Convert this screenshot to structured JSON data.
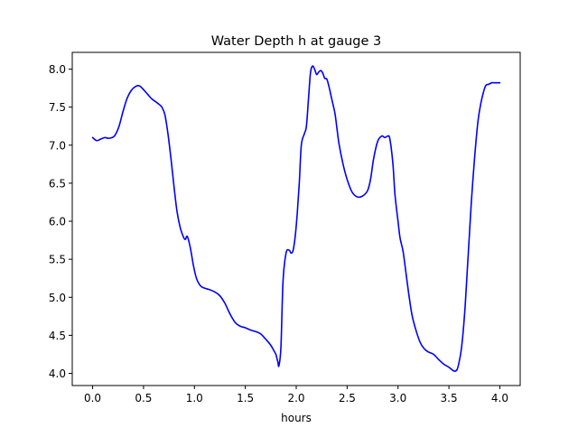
{
  "chart_data": {
    "type": "line",
    "title": "Water Depth h at gauge 3",
    "xlabel": "hours",
    "ylabel": "",
    "xlim": [
      -0.2,
      4.2
    ],
    "ylim": [
      3.84,
      8.22
    ],
    "xticks": [
      0.0,
      0.5,
      1.0,
      1.5,
      2.0,
      2.5,
      3.0,
      3.5,
      4.0
    ],
    "xtick_labels": [
      "0.0",
      "0.5",
      "1.0",
      "1.5",
      "2.0",
      "2.5",
      "3.0",
      "3.5",
      "4.0"
    ],
    "yticks": [
      4.0,
      4.5,
      5.0,
      5.5,
      6.0,
      6.5,
      7.0,
      7.5,
      8.0
    ],
    "ytick_labels": [
      "4.0",
      "4.5",
      "5.0",
      "5.5",
      "6.0",
      "6.5",
      "7.0",
      "7.5",
      "8.0"
    ],
    "grid": false,
    "legend": "none",
    "series": [
      {
        "color": "#0000ff",
        "x": [
          0.0,
          0.04,
          0.08,
          0.12,
          0.15,
          0.19,
          0.22,
          0.26,
          0.3,
          0.34,
          0.38,
          0.42,
          0.46,
          0.5,
          0.54,
          0.58,
          0.62,
          0.65,
          0.68,
          0.71,
          0.74,
          0.77,
          0.8,
          0.83,
          0.86,
          0.89,
          0.91,
          0.93,
          0.96,
          0.99,
          1.02,
          1.06,
          1.1,
          1.15,
          1.2,
          1.25,
          1.3,
          1.35,
          1.4,
          1.45,
          1.5,
          1.55,
          1.6,
          1.65,
          1.7,
          1.75,
          1.78,
          1.8,
          1.81,
          1.82,
          1.83,
          1.85,
          1.87,
          1.9,
          1.93,
          1.95,
          1.97,
          1.99,
          2.01,
          2.03,
          2.05,
          2.08,
          2.1,
          2.12,
          2.14,
          2.16,
          2.18,
          2.2,
          2.22,
          2.24,
          2.26,
          2.28,
          2.3,
          2.32,
          2.35,
          2.38,
          2.4,
          2.42,
          2.46,
          2.5,
          2.55,
          2.6,
          2.65,
          2.7,
          2.73,
          2.76,
          2.8,
          2.84,
          2.87,
          2.9,
          2.92,
          2.95,
          2.97,
          3.0,
          3.02,
          3.05,
          3.08,
          3.11,
          3.14,
          3.18,
          3.22,
          3.26,
          3.3,
          3.35,
          3.4,
          3.45,
          3.5,
          3.55,
          3.58,
          3.6,
          3.62,
          3.64,
          3.66,
          3.68,
          3.7,
          3.72,
          3.75,
          3.78,
          3.8,
          3.83,
          3.86,
          3.89,
          3.92,
          3.94,
          3.96,
          3.98,
          4.0
        ],
        "y": [
          7.1,
          7.06,
          7.08,
          7.1,
          7.09,
          7.1,
          7.13,
          7.25,
          7.45,
          7.62,
          7.72,
          7.77,
          7.78,
          7.73,
          7.67,
          7.61,
          7.57,
          7.54,
          7.5,
          7.4,
          7.15,
          6.82,
          6.45,
          6.12,
          5.92,
          5.8,
          5.76,
          5.8,
          5.65,
          5.42,
          5.25,
          5.15,
          5.12,
          5.1,
          5.07,
          5.02,
          4.92,
          4.78,
          4.67,
          4.62,
          4.6,
          4.57,
          4.55,
          4.52,
          4.45,
          4.37,
          4.3,
          4.25,
          4.2,
          4.15,
          4.1,
          4.35,
          5.2,
          5.58,
          5.62,
          5.58,
          5.62,
          5.8,
          6.1,
          6.5,
          7.0,
          7.15,
          7.25,
          7.6,
          7.95,
          8.04,
          8.0,
          7.93,
          7.96,
          7.98,
          7.95,
          7.88,
          7.87,
          7.78,
          7.6,
          7.42,
          7.22,
          7.02,
          6.75,
          6.55,
          6.38,
          6.32,
          6.33,
          6.4,
          6.55,
          6.82,
          7.05,
          7.12,
          7.1,
          7.12,
          7.08,
          6.75,
          6.35,
          6.0,
          5.78,
          5.6,
          5.3,
          5.0,
          4.75,
          4.55,
          4.4,
          4.32,
          4.28,
          4.25,
          4.18,
          4.12,
          4.08,
          4.03,
          4.05,
          4.15,
          4.3,
          4.55,
          4.9,
          5.35,
          5.8,
          6.25,
          6.8,
          7.25,
          7.45,
          7.65,
          7.78,
          7.8,
          7.82,
          7.82,
          7.82,
          7.82,
          7.82
        ]
      }
    ]
  }
}
